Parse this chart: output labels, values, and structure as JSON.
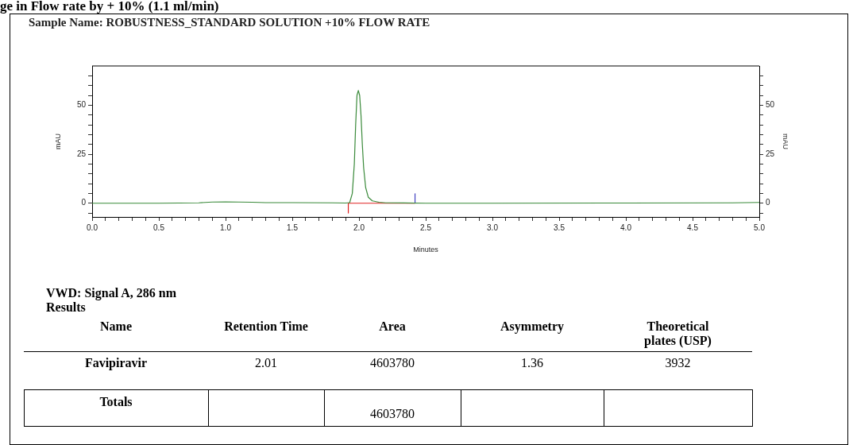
{
  "chart_data": {
    "type": "line",
    "title": "Sample Name: ROBUSTNESS_STANDARD SOLUTION +10% FLOW RATE",
    "xlabel": "Minutes",
    "ylabel": "mAU",
    "y2label": "mAU",
    "marker": "none",
    "line_style": "solid",
    "xlim": [
      0,
      5
    ],
    "ylim": [
      -7,
      70
    ],
    "y2lim": [
      -7,
      70
    ],
    "xticks": [
      {
        "value": 0,
        "label": "0.0"
      },
      {
        "value": 0.1,
        "label": null
      },
      {
        "value": 0.2,
        "label": null
      },
      {
        "value": 0.3,
        "label": null
      },
      {
        "value": 0.4,
        "label": null
      },
      0.5,
      {
        "value": 0.6,
        "label": null
      },
      {
        "value": 0.7,
        "label": null
      },
      {
        "value": 0.8,
        "label": null
      },
      {
        "value": 0.9,
        "label": null
      },
      {
        "value": 1,
        "label": "1.0"
      },
      {
        "value": 1.1,
        "label": null
      },
      {
        "value": 1.2,
        "label": null
      },
      {
        "value": 1.3,
        "label": null
      },
      {
        "value": 1.4,
        "label": null
      },
      1.5,
      {
        "value": 1.6,
        "label": null
      },
      {
        "value": 1.7,
        "label": null
      },
      {
        "value": 1.8,
        "label": null
      },
      {
        "value": 1.9,
        "label": null
      },
      {
        "value": 2,
        "label": "2.0"
      },
      {
        "value": 2.1,
        "label": null
      },
      {
        "value": 2.2,
        "label": null
      },
      {
        "value": 2.3,
        "label": null
      },
      {
        "value": 2.4,
        "label": null
      },
      2.5,
      {
        "value": 2.6,
        "label": null
      },
      {
        "value": 2.7,
        "label": null
      },
      {
        "value": 2.8,
        "label": null
      },
      {
        "value": 2.9,
        "label": null
      },
      {
        "value": 3,
        "label": "3.0"
      },
      {
        "value": 3.1,
        "label": null
      },
      {
        "value": 3.2,
        "label": null
      },
      {
        "value": 3.3,
        "label": null
      },
      {
        "value": 3.4,
        "label": null
      },
      3.5,
      {
        "value": 3.6,
        "label": null
      },
      {
        "value": 3.7,
        "label": null
      },
      {
        "value": 3.8,
        "label": null
      },
      {
        "value": 3.9,
        "label": null
      },
      {
        "value": 4,
        "label": "4.0"
      },
      {
        "value": 4.1,
        "label": null
      },
      {
        "value": 4.2,
        "label": null
      },
      {
        "value": 4.3,
        "label": null
      },
      {
        "value": 4.4,
        "label": null
      },
      4.5,
      {
        "value": 4.6,
        "label": null
      },
      {
        "value": 4.7,
        "label": null
      },
      {
        "value": 4.8,
        "label": null
      },
      {
        "value": 4.9,
        "label": null
      },
      {
        "value": 5,
        "label": "5.0"
      }
    ],
    "yticks": [
      {
        "value": -5,
        "label": null
      },
      0,
      {
        "value": 5,
        "label": null
      },
      {
        "value": 10,
        "label": null
      },
      {
        "value": 15,
        "label": null
      },
      {
        "value": 20,
        "label": null
      },
      25,
      {
        "value": 30,
        "label": null
      },
      {
        "value": 35,
        "label": null
      },
      {
        "value": 40,
        "label": null
      },
      {
        "value": 45,
        "label": null
      },
      50,
      {
        "value": 55,
        "label": null
      },
      {
        "value": 60,
        "label": null
      },
      {
        "value": 65,
        "label": null
      }
    ],
    "y2ticks": [
      {
        "value": -5,
        "label": null
      },
      0,
      {
        "value": 5,
        "label": null
      },
      {
        "value": 10,
        "label": null
      },
      {
        "value": 15,
        "label": null
      },
      {
        "value": 20,
        "label": null
      },
      25,
      {
        "value": 30,
        "label": null
      },
      {
        "value": 35,
        "label": null
      },
      {
        "value": 40,
        "label": null
      },
      {
        "value": 45,
        "label": null
      },
      50,
      {
        "value": 55,
        "label": null
      },
      {
        "value": 60,
        "label": null
      },
      {
        "value": 65,
        "label": null
      }
    ],
    "series": [
      {
        "color": "#3a8a3a",
        "x": [
          0,
          0.5,
          0.8,
          0.9,
          1.0,
          1.1,
          1.2,
          1.3,
          1.5,
          1.8,
          1.9,
          1.93,
          1.95,
          1.965,
          1.975,
          1.985,
          1.995,
          2.005,
          2.015,
          2.025,
          2.035,
          2.05,
          2.07,
          2.1,
          2.15,
          2.2,
          2.5,
          3.0,
          4.0,
          4.8,
          5.0
        ],
        "values": [
          0,
          0,
          0.2,
          0.6,
          0.7,
          0.6,
          0.5,
          0.3,
          0.3,
          0.2,
          0.1,
          0.3,
          5,
          20,
          40,
          55,
          57.5,
          55,
          45,
          30,
          18,
          8,
          3,
          1.2,
          0.5,
          0.2,
          0,
          0,
          0.1,
          0.2,
          0.4
        ]
      },
      {
        "color": "#e02020",
        "x": [
          1.92,
          2.42
        ],
        "values": [
          0,
          0
        ]
      },
      {
        "color": "#e02020",
        "x": [
          1.92,
          1.92
        ],
        "values": [
          0,
          -5
        ]
      },
      {
        "color": "#4040c0",
        "x": [
          2.42,
          2.42
        ],
        "values": [
          0,
          5
        ]
      }
    ],
    "annotations": [
      "ge in Flow rate by + 10% (1.1 ml/min)",
      "VWD: Signal A, 286 nm Results",
      "Name",
      "Retention Time",
      "Area",
      "Asymmetry",
      "Theoretical plates (USP)",
      "Favipiravir",
      "2.01",
      "4603780",
      "1.36",
      "3932",
      "Totals",
      "4603780"
    ]
  }
}
